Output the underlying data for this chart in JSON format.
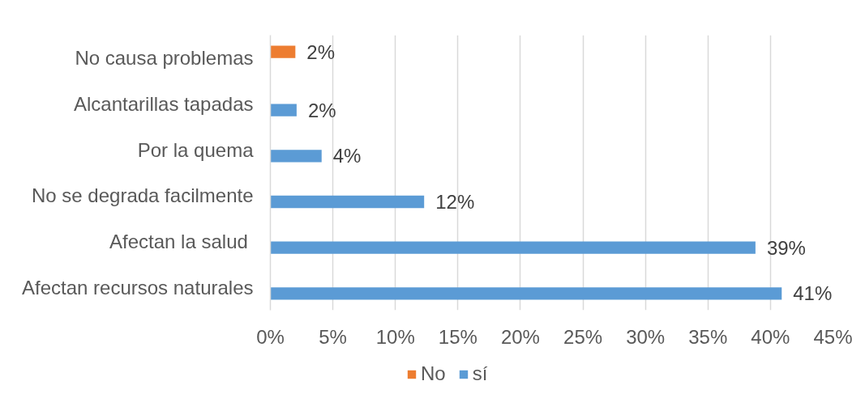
{
  "chart_data": {
    "type": "bar",
    "orientation": "horizontal",
    "categories": [
      "No causa problemas",
      "Alcantarillas tapadas",
      "Por la quema",
      "No se degrada facilmente",
      "Afectan la salud ",
      "Afectan recursos naturales"
    ],
    "series": [
      {
        "name": "No",
        "color": "#ed7d31",
        "values": [
          2.0,
          null,
          null,
          null,
          null,
          null
        ],
        "value_labels": [
          "2%",
          null,
          null,
          null,
          null,
          null
        ]
      },
      {
        "name": "sí",
        "color": "#5b9bd5",
        "values": [
          null,
          2.1,
          4.1,
          12.3,
          38.8,
          40.9
        ],
        "value_labels": [
          null,
          "2%",
          "4%",
          "12%",
          "39%",
          "41%"
        ]
      }
    ],
    "xlim": [
      0,
      45
    ],
    "xticks": [
      {
        "value": 0,
        "label": "0%"
      },
      {
        "value": 5,
        "label": "5%"
      },
      {
        "value": 10,
        "label": "10%"
      },
      {
        "value": 15,
        "label": "15%"
      },
      {
        "value": 20,
        "label": "20%"
      },
      {
        "value": 25,
        "label": "25%"
      },
      {
        "value": 30,
        "label": "30%"
      },
      {
        "value": 35,
        "label": "35%"
      },
      {
        "value": 40,
        "label": "40%"
      },
      {
        "value": 45,
        "label": "45%"
      }
    ],
    "grid": "x",
    "legend": "bottom"
  }
}
